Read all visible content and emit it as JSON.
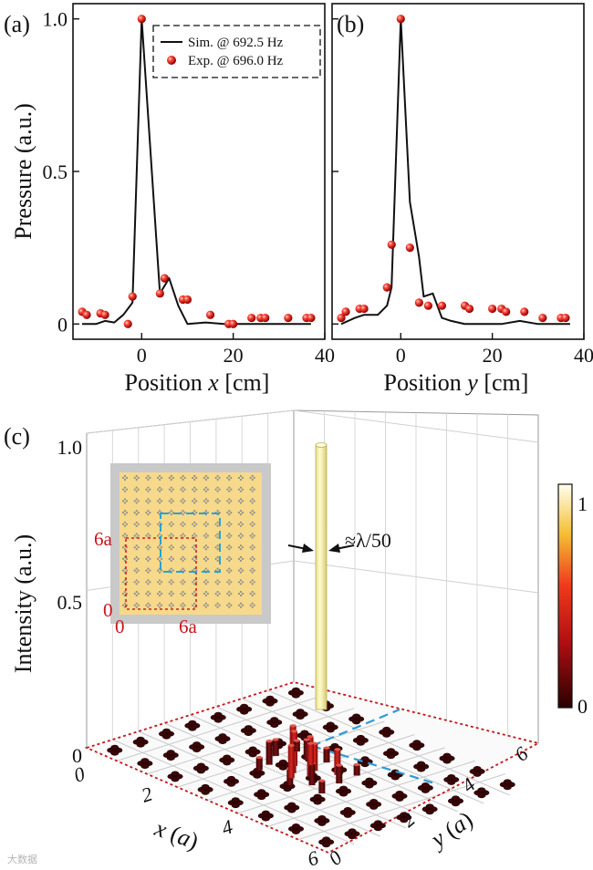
{
  "panels": {
    "a": "(a)",
    "b": "(b)",
    "c": "(c)"
  },
  "chart_data": [
    {
      "type": "line",
      "panel": "(a)",
      "xlabel_prefix": "Position ",
      "xlabel_var": "x",
      "xlabel_suffix": " [cm]",
      "ylabel": "Pressure (a.u.)",
      "xlim": [
        -15,
        40
      ],
      "ylim": [
        -0.05,
        1.05
      ],
      "xticks": [
        0,
        20,
        40
      ],
      "xtick_labels": [
        "0",
        "20",
        "40"
      ],
      "yticks": [
        0,
        0.5,
        1.0
      ],
      "ytick_labels": [
        "0",
        "0.5",
        "1.0"
      ],
      "legend": {
        "position": "top-right",
        "sim": "Sim. @ 692.5 Hz",
        "exp": "Exp. @ 696.0 Hz"
      },
      "series": [
        {
          "name": "Sim. @ 692.5 Hz",
          "kind": "line",
          "x": [
            -13,
            -10,
            -8,
            -6,
            -4,
            -2,
            0,
            2,
            4,
            6,
            8,
            10,
            14,
            18,
            22,
            26,
            30,
            34,
            37
          ],
          "y": [
            0.0,
            0.0,
            0.01,
            0.005,
            0.03,
            0.07,
            1.0,
            0.55,
            0.1,
            0.15,
            0.06,
            0.0,
            0.005,
            0.0,
            0.0,
            0.0,
            0.0,
            0.0,
            0.0
          ]
        },
        {
          "name": "Exp. @ 696.0 Hz",
          "kind": "scatter",
          "x": [
            -13,
            -12,
            -9,
            -8,
            -3,
            -2,
            0,
            4,
            5,
            9,
            10,
            15,
            19,
            20,
            24,
            26,
            27,
            32,
            36,
            37
          ],
          "y": [
            0.04,
            0.03,
            0.035,
            0.03,
            0.0,
            0.09,
            1.0,
            0.1,
            0.15,
            0.08,
            0.08,
            0.03,
            0.0,
            0.0,
            0.02,
            0.02,
            0.02,
            0.02,
            0.02,
            0.02
          ]
        }
      ]
    },
    {
      "type": "line",
      "panel": "(b)",
      "xlabel_prefix": "Position ",
      "xlabel_var": "y",
      "xlabel_suffix": " [cm]",
      "xlim": [
        -15,
        40
      ],
      "ylim": [
        -0.05,
        1.05
      ],
      "xticks": [
        0,
        20,
        40
      ],
      "xtick_labels": [
        "0",
        "20",
        "40"
      ],
      "series": [
        {
          "name": "Sim.",
          "kind": "line",
          "x": [
            -13,
            -10,
            -8,
            -5,
            -3,
            -2,
            0,
            2,
            4,
            5,
            7,
            9,
            11,
            14,
            18,
            22,
            26,
            30,
            34,
            37
          ],
          "y": [
            0.0,
            0.02,
            0.03,
            0.03,
            0.06,
            0.12,
            1.0,
            0.4,
            0.22,
            0.09,
            0.1,
            0.02,
            0.01,
            0.0,
            0.0,
            0.0,
            0.01,
            0.0,
            0.0,
            0.0
          ]
        },
        {
          "name": "Exp.",
          "kind": "scatter",
          "x": [
            -13,
            -12,
            -9,
            -8,
            -3,
            -2,
            0,
            2,
            4,
            6,
            9,
            14,
            15,
            20,
            22,
            23,
            27,
            31,
            35,
            36
          ],
          "y": [
            0.02,
            0.04,
            0.05,
            0.05,
            0.12,
            0.26,
            1.0,
            0.25,
            0.07,
            0.06,
            0.06,
            0.06,
            0.05,
            0.05,
            0.05,
            0.04,
            0.04,
            0.02,
            0.02,
            0.02
          ]
        }
      ]
    },
    {
      "type": "bar3d",
      "panel": "(c)",
      "zlabel": "Intensity (a.u.)",
      "xlabel_var": "x",
      "xlabel_unit": "a",
      "ylabel_var": "y",
      "ylabel_unit": "a",
      "zticks": [
        "0",
        "0.5",
        "1.0"
      ],
      "xticks": [
        "0",
        "2",
        "4",
        "6"
      ],
      "yticks": [
        "0",
        "2",
        "4",
        "6"
      ],
      "annotation": "≈λ/50",
      "colorbar": {
        "min": "0",
        "max": "1"
      },
      "inset": {
        "label_y": "6a",
        "label_x": "6a",
        "origin_y": "0",
        "origin_x": "0"
      },
      "peak": 1.0
    }
  ],
  "watermark": "大数据"
}
